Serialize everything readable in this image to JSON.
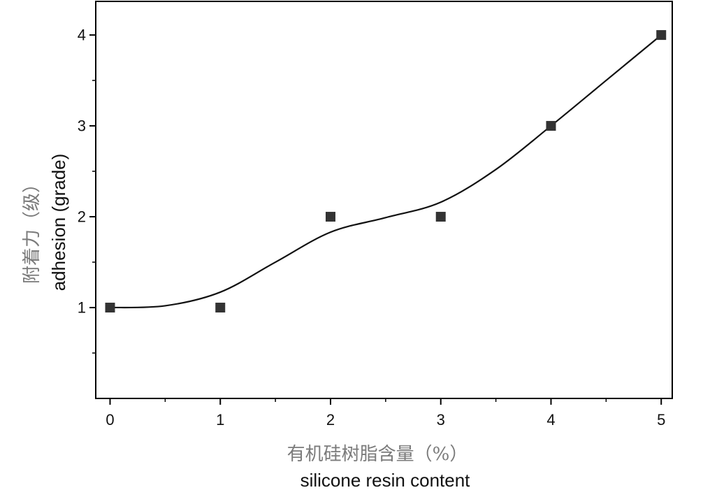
{
  "chart_data": {
    "type": "scatter",
    "title": "",
    "ylabel": "附着力（级）",
    "ylabel_en": "adhesion (grade)",
    "xlabel": "有机硅树脂含量（%）",
    "xlabel_en": "silicone resin content",
    "x": [
      0,
      1,
      2,
      3,
      4,
      5
    ],
    "y": [
      1,
      1,
      2,
      2,
      3,
      4
    ],
    "fit_curve": {
      "x": [
        0,
        0.5,
        1,
        1.5,
        2,
        2.5,
        3,
        3.5,
        4,
        4.5,
        5
      ],
      "y": [
        1.0,
        1.02,
        1.17,
        1.5,
        1.83,
        1.99,
        2.16,
        2.52,
        3.0,
        3.5,
        4.0
      ]
    },
    "xlim": [
      -0.13,
      5.1
    ],
    "ylim": [
      0,
      4.37
    ],
    "xticks": [
      "0",
      "1",
      "2",
      "3",
      "4",
      "5"
    ],
    "yticks": [
      "1",
      "2",
      "3",
      "4"
    ],
    "x_minor_step": 0.5,
    "y_minor_step": 0.5,
    "grid": false,
    "legend": "none",
    "colors": {
      "marker": "#333333",
      "curve": "#111111",
      "axis": "#000000",
      "label_zh": "#7a7a7a",
      "label_en": "#111111",
      "tick_label": "#111111"
    }
  }
}
